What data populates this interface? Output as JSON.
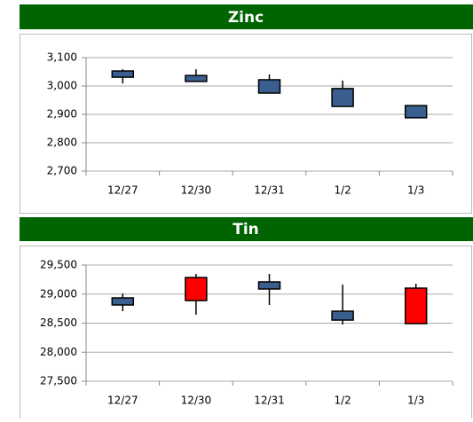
{
  "chart_data": [
    {
      "type": "candlestick",
      "title": "Zinc",
      "categories": [
        "12/27",
        "12/30",
        "12/31",
        "1/2",
        "1/3"
      ],
      "open": [
        3053,
        3037,
        3022,
        2991,
        2931
      ],
      "high": [
        3059,
        3059,
        3041,
        3019,
        2931
      ],
      "low": [
        3009,
        3016,
        2975,
        2928,
        2888
      ],
      "close": [
        3031,
        3016,
        2975,
        2928,
        2888
      ],
      "up_color": "#ff0000",
      "down_color": "#3a5f8f",
      "ylim": [
        2700,
        3100
      ],
      "yticks": [
        {
          "value": 2700,
          "label": "2,700"
        },
        {
          "value": 2800,
          "label": "2,800"
        },
        {
          "value": 2900,
          "label": "2,900"
        },
        {
          "value": 3000,
          "label": "3,000"
        },
        {
          "value": 3100,
          "label": "3,100"
        }
      ],
      "grid": true
    },
    {
      "type": "candlestick",
      "title": "Tin",
      "categories": [
        "12/27",
        "12/30",
        "12/31",
        "1/2",
        "1/3"
      ],
      "open": [
        28935,
        28889,
        29210,
        28706,
        28492
      ],
      "high": [
        29011,
        29347,
        29347,
        29164,
        29179
      ],
      "low": [
        28706,
        28645,
        28813,
        28477,
        28492
      ],
      "close": [
        28813,
        29286,
        29088,
        28553,
        29103
      ],
      "up_color": "#ff0000",
      "down_color": "#3a5f8f",
      "ylim": [
        27500,
        29500
      ],
      "yticks": [
        {
          "value": 27500,
          "label": "27,500"
        },
        {
          "value": 28000,
          "label": "28,000"
        },
        {
          "value": 28500,
          "label": "28,500"
        },
        {
          "value": 29000,
          "label": "29,000"
        },
        {
          "value": 29500,
          "label": "29,500"
        }
      ],
      "grid": true
    }
  ]
}
